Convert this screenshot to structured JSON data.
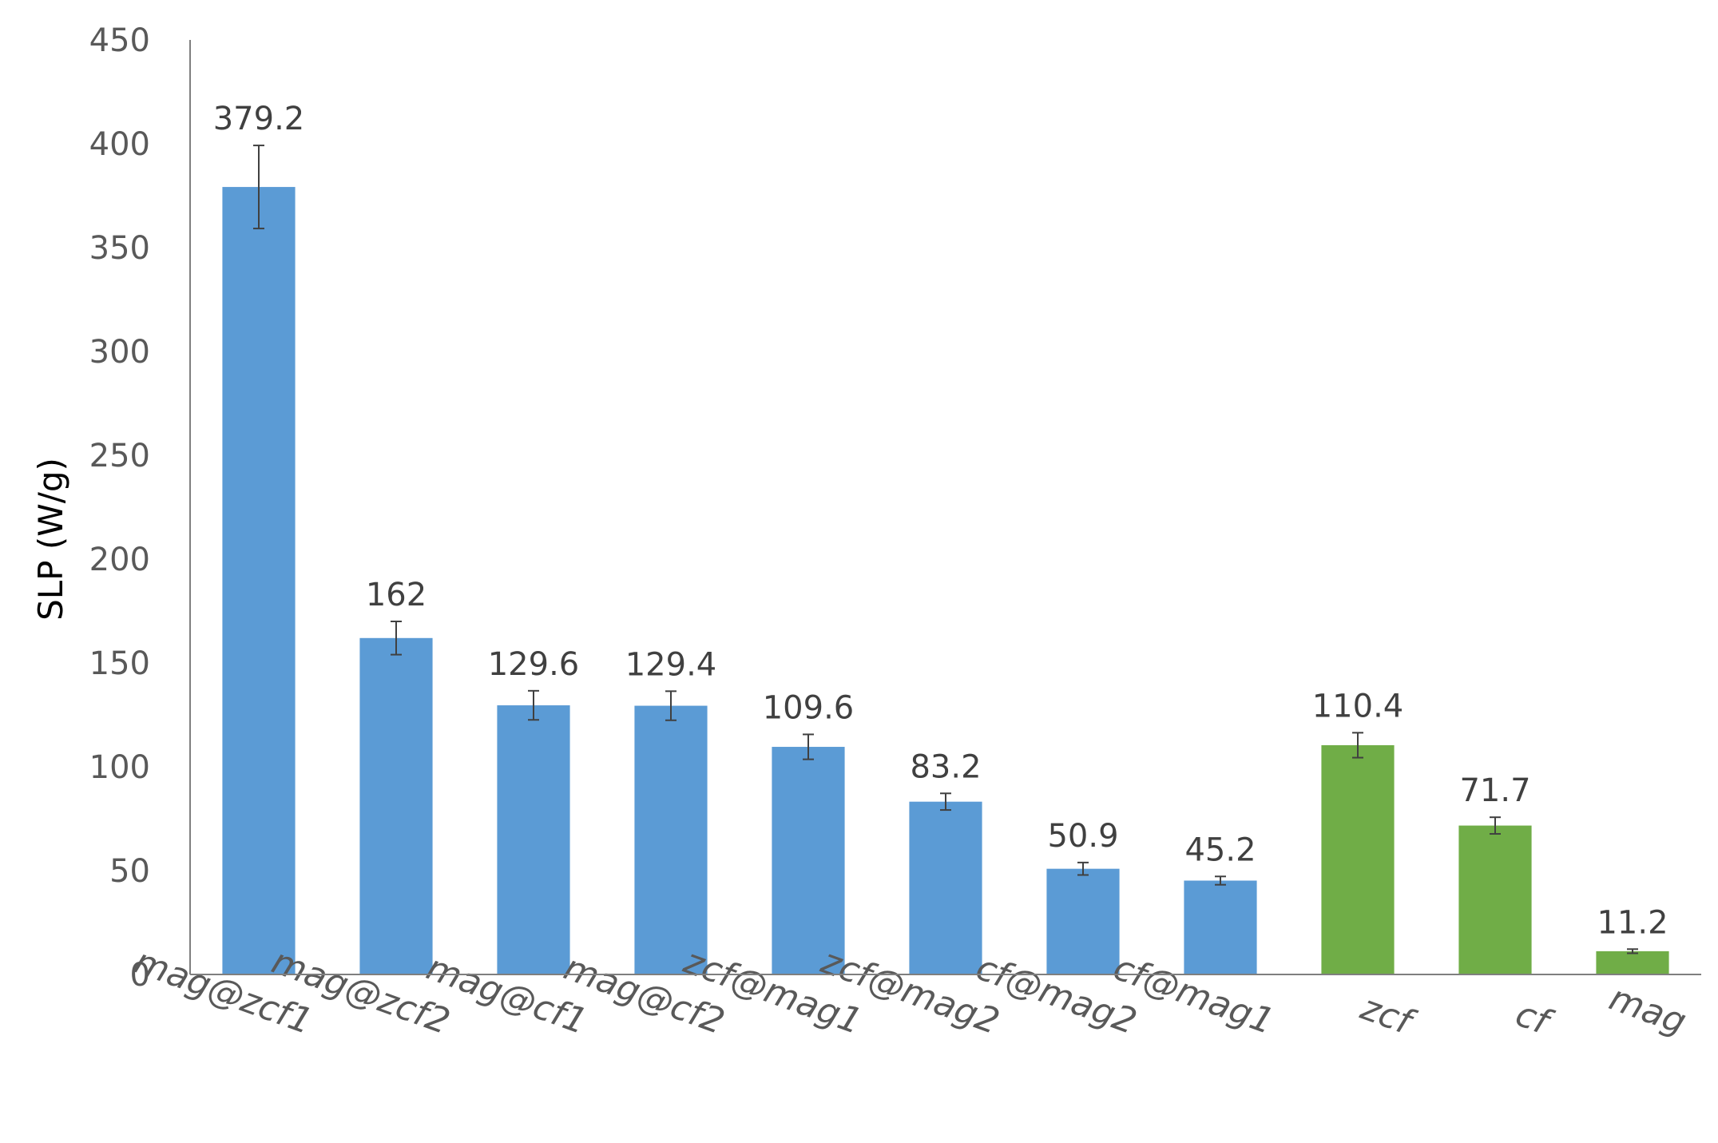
{
  "chart_data": {
    "type": "bar",
    "title": "",
    "xlabel": "",
    "ylabel": "SLP (W/g)",
    "ylim": [
      0,
      450
    ],
    "yticks": [
      0,
      50,
      100,
      150,
      200,
      250,
      300,
      350,
      400,
      450
    ],
    "grid": false,
    "legend": "none",
    "categories": [
      "mag@zcf1",
      "mag@zcf2",
      "mag@cf1",
      "mag@cf2",
      "zcf@mag1",
      "zcf@mag2",
      "cf@mag2",
      "cf@mag1",
      "zcf",
      "cf",
      "mag"
    ],
    "values": [
      379.2,
      162,
      129.6,
      129.4,
      109.6,
      83.2,
      50.9,
      45.2,
      110.4,
      71.7,
      11.2
    ],
    "data_labels": [
      "379.2",
      "162",
      "129.6",
      "129.4",
      "109.6",
      "83.2",
      "50.9",
      "45.2",
      "110.4",
      "71.7",
      "11.2"
    ],
    "errors": [
      20,
      8,
      7,
      7,
      6,
      4,
      3,
      2,
      6,
      4,
      1
    ],
    "colors": [
      "#5b9bd5",
      "#5b9bd5",
      "#5b9bd5",
      "#5b9bd5",
      "#5b9bd5",
      "#5b9bd5",
      "#5b9bd5",
      "#5b9bd5",
      "#70ad47",
      "#70ad47",
      "#70ad47"
    ]
  }
}
